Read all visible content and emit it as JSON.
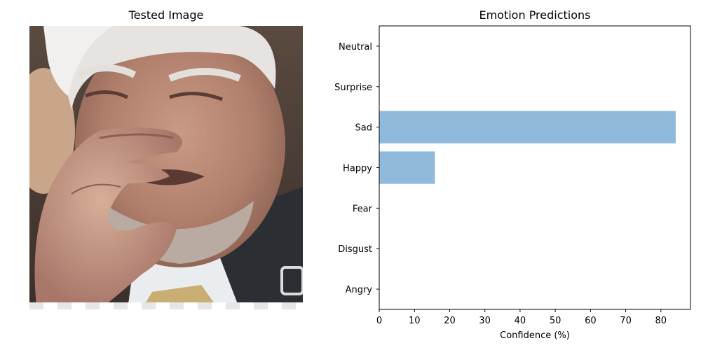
{
  "left_panel": {
    "title": "Tested Image"
  },
  "chart_data": {
    "type": "bar",
    "orientation": "horizontal",
    "title": "Emotion Predictions",
    "xlabel": "Confidence (%)",
    "ylabel": "",
    "categories": [
      "Angry",
      "Disgust",
      "Fear",
      "Happy",
      "Sad",
      "Surprise",
      "Neutral"
    ],
    "values": [
      0,
      0,
      0,
      15.8,
      84.2,
      0,
      0
    ],
    "xlim": [
      0,
      88.4
    ],
    "xticks": [
      0,
      10,
      20,
      30,
      40,
      50,
      60,
      70,
      80
    ],
    "bar_color": "#8fbadc",
    "grid": false
  }
}
